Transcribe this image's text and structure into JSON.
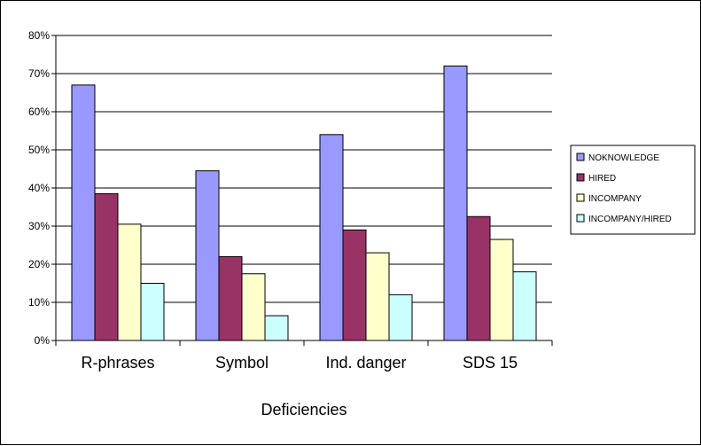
{
  "chart_data": {
    "type": "bar",
    "title": "",
    "xlabel": "Deficiencies",
    "ylabel": "",
    "categories": [
      "R-phrases",
      "Symbol",
      "Ind. danger",
      "SDS 15"
    ],
    "series": [
      {
        "name": "NOKNOWLEDGE",
        "color": "#9999ff",
        "values": [
          67,
          44.5,
          54,
          72
        ]
      },
      {
        "name": "HIRED",
        "color": "#993366",
        "values": [
          38.5,
          22,
          29,
          32.5
        ]
      },
      {
        "name": "INCOMPANY",
        "color": "#ffffcc",
        "values": [
          30.5,
          17.5,
          23,
          26.5
        ]
      },
      {
        "name": "INCOMPANY/HIRED",
        "color": "#ccffff",
        "values": [
          15,
          6.5,
          12,
          18
        ]
      }
    ],
    "ylim": [
      0,
      80
    ],
    "ytick_values": [
      0,
      10,
      20,
      30,
      40,
      50,
      60,
      70,
      80
    ],
    "ytick_labels": [
      "0%",
      "10%",
      "20%",
      "30%",
      "40%",
      "50%",
      "60%",
      "70%",
      "80%"
    ],
    "grid": true,
    "legend_position": "right"
  }
}
